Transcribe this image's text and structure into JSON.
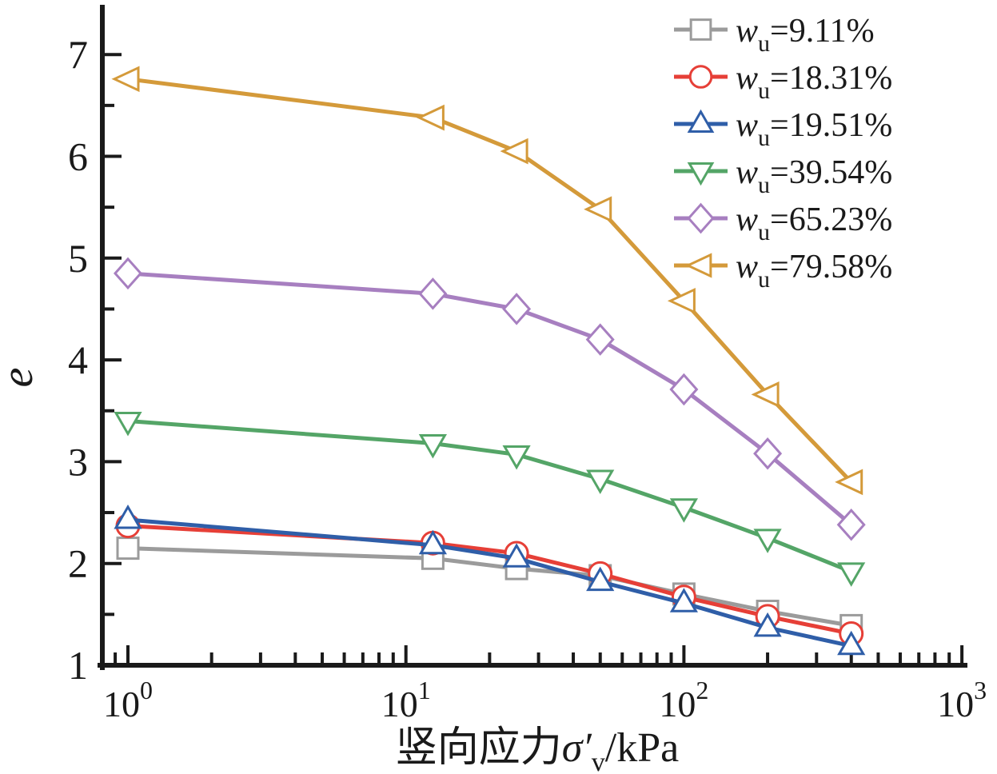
{
  "chart_data": {
    "type": "line",
    "x_scale": "log",
    "title": "",
    "xlabel": {
      "cjk": "竖向应力",
      "symbol": "σ′",
      "subscript": "v",
      "unit": "/kPa"
    },
    "ylabel": "e",
    "xlim": [
      0.8,
      1030
    ],
    "ylim": [
      1,
      7.45
    ],
    "x": [
      1,
      12.5,
      25,
      50,
      100,
      200,
      400
    ],
    "y_major_ticks": [
      1,
      2,
      3,
      4,
      5,
      6,
      7
    ],
    "y_minor_ticks": [
      1.5,
      2.5,
      3.5,
      4.5,
      5.5,
      6.5
    ],
    "x_major_ticks": [
      1,
      10,
      100,
      1000
    ],
    "x_tick_base": "10",
    "x_tick_exponents": [
      "0",
      "1",
      "2",
      "3"
    ],
    "grid": false,
    "legend_position": "top-right",
    "legend_var": "w",
    "legend_sub": "u",
    "series": [
      {
        "name": "wu=9.11%",
        "wu": "9.11%",
        "color": "#9b9b9b",
        "marker": "square",
        "values": [
          2.15,
          2.05,
          1.95,
          1.88,
          1.7,
          1.53,
          1.39
        ]
      },
      {
        "name": "wu=18.31%",
        "wu": "18.31%",
        "color": "#e63f37",
        "color_note": "red",
        "marker": "circle",
        "values": [
          2.37,
          2.2,
          2.1,
          1.9,
          1.67,
          1.48,
          1.31
        ]
      },
      {
        "name": "wu=19.51%",
        "wu": "19.51%",
        "color": "#2f5ea8",
        "color_note": "blue",
        "marker": "triangle-up",
        "values": [
          2.43,
          2.18,
          2.05,
          1.82,
          1.61,
          1.37,
          1.19
        ]
      },
      {
        "name": "wu=39.54%",
        "wu": "39.54%",
        "color": "#54a567",
        "color_note": "green",
        "marker": "triangle-down",
        "values": [
          3.4,
          3.18,
          3.07,
          2.83,
          2.55,
          2.25,
          1.92
        ]
      },
      {
        "name": "wu=65.23%",
        "wu": "65.23%",
        "color": "#a77fc0",
        "color_note": "purple",
        "marker": "diamond",
        "values": [
          4.85,
          4.65,
          4.5,
          4.2,
          3.71,
          3.08,
          2.38
        ]
      },
      {
        "name": "wu=79.58%",
        "wu": "79.58%",
        "color": "#d49a3a",
        "color_note": "orange",
        "marker": "triangle-left",
        "values": [
          6.76,
          6.38,
          6.05,
          5.48,
          4.58,
          3.66,
          2.8
        ]
      }
    ]
  }
}
